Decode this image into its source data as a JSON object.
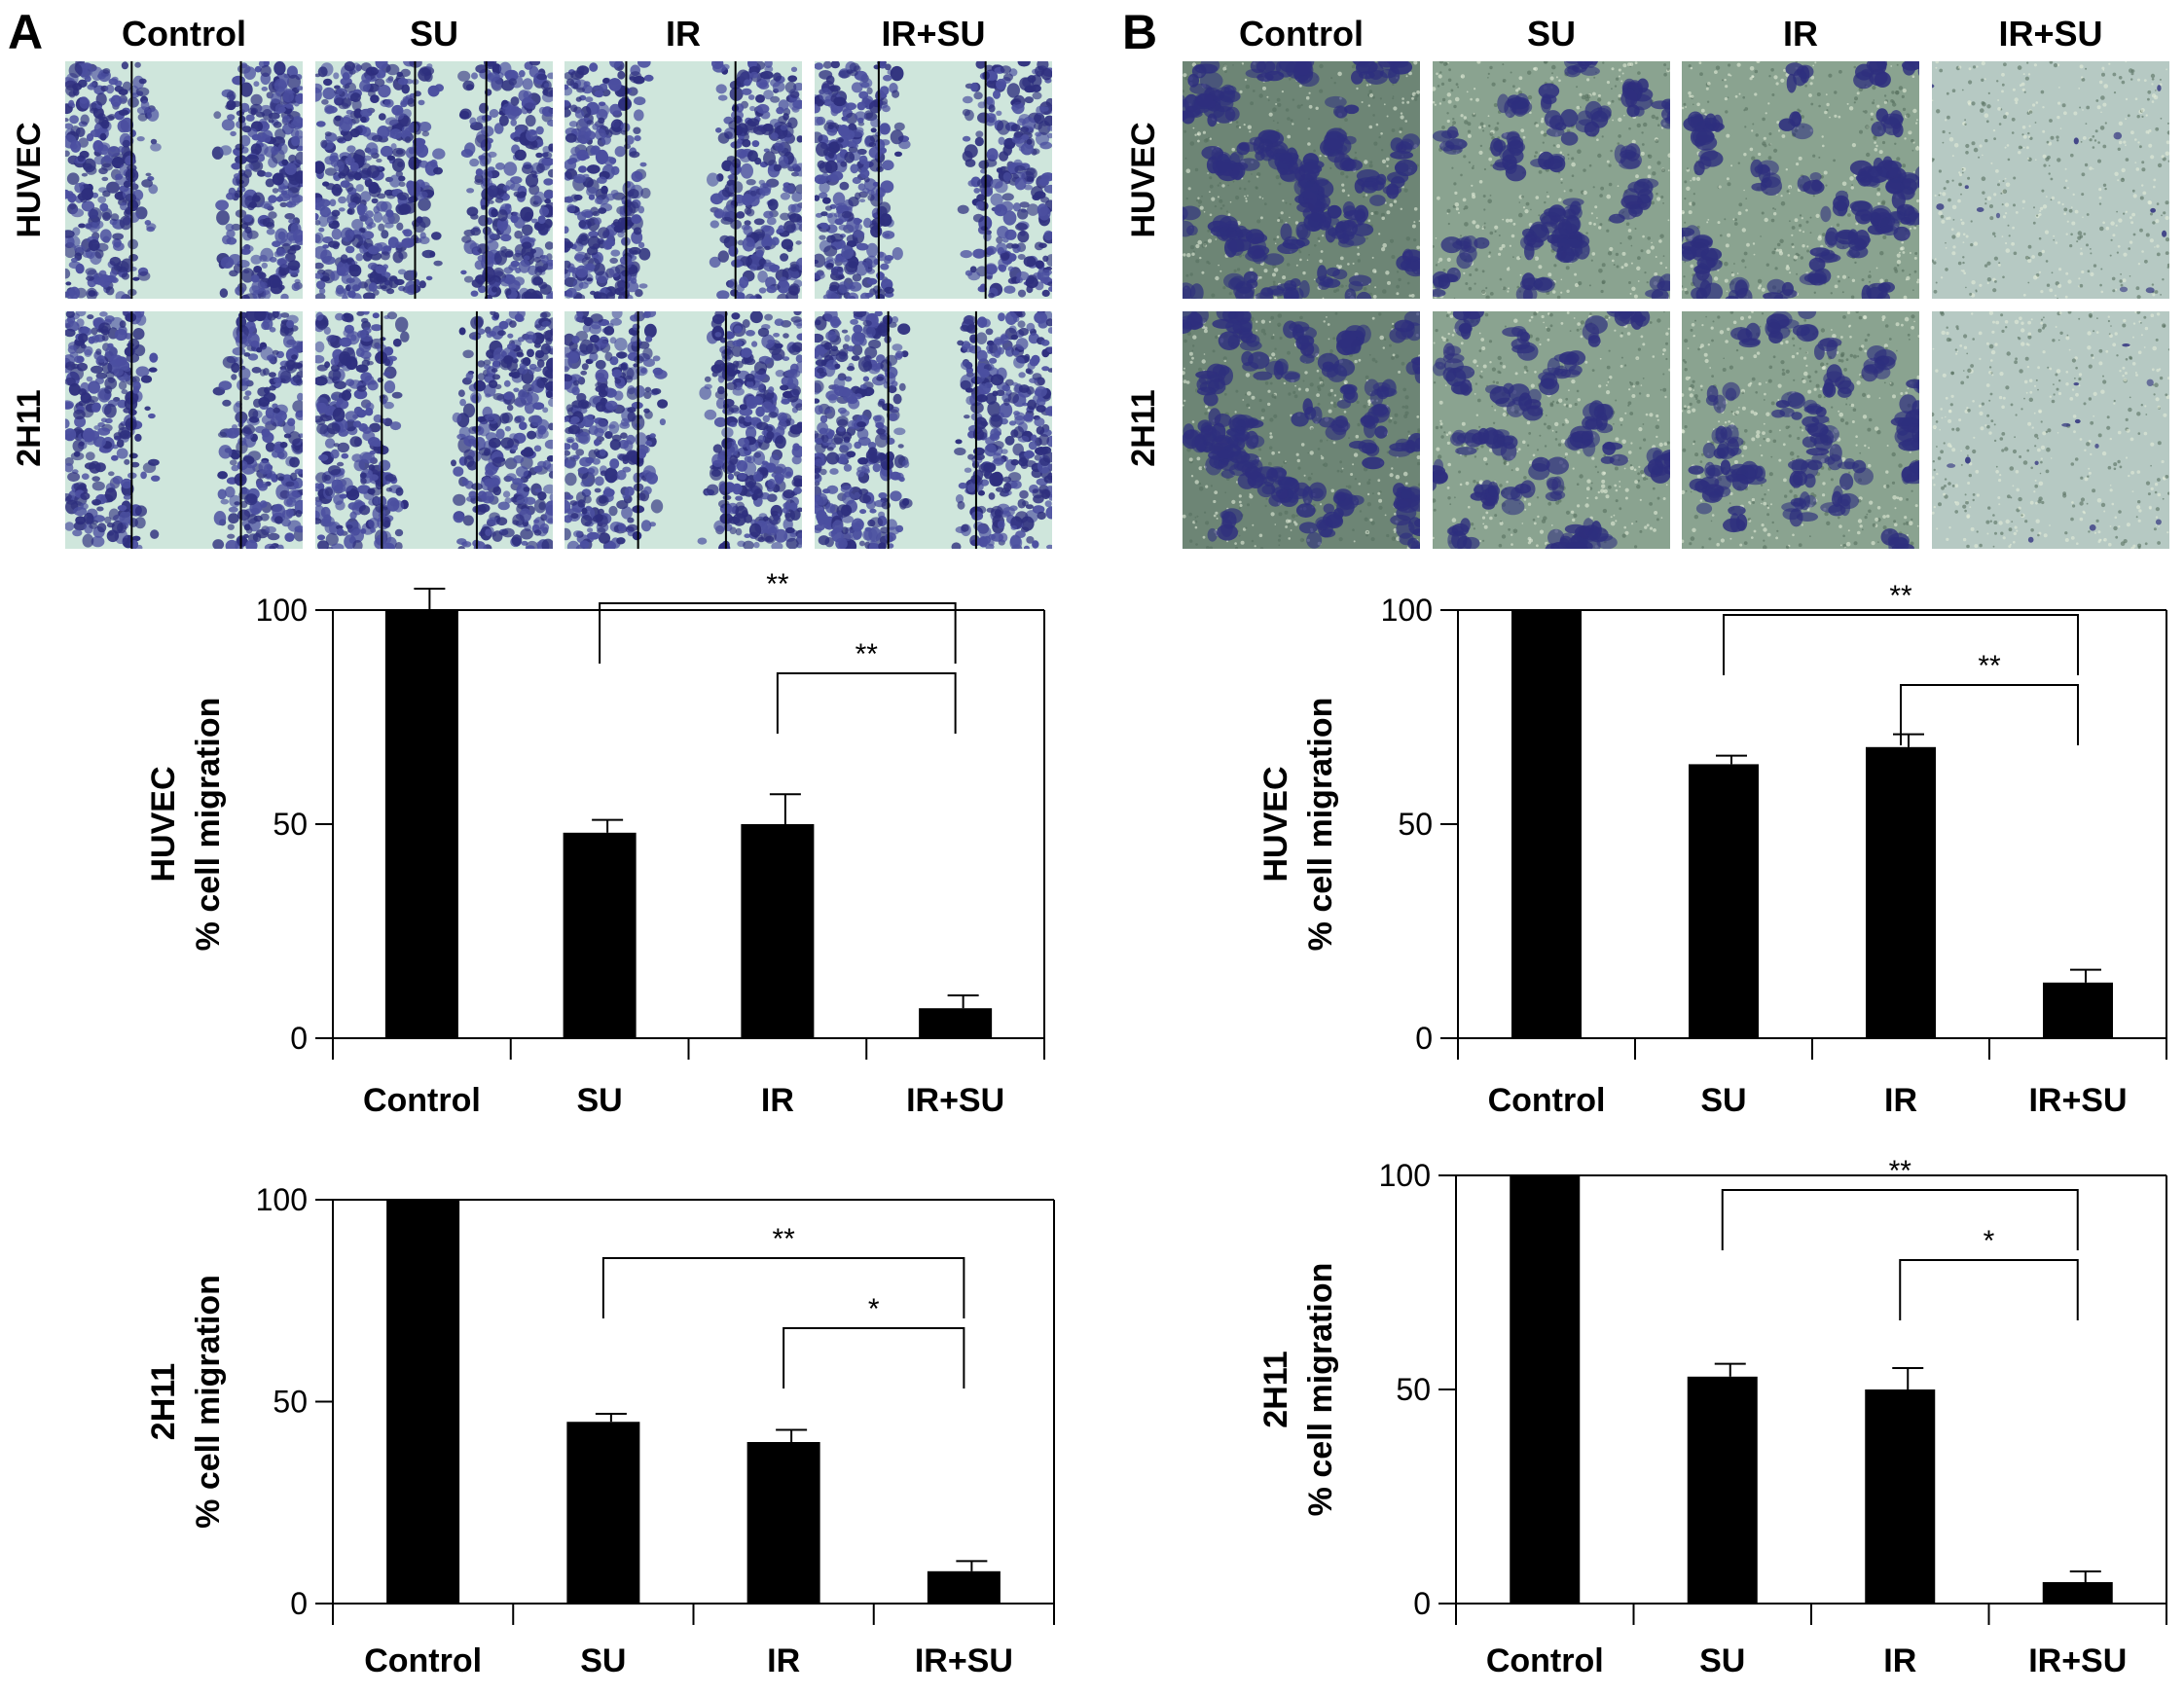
{
  "panels": [
    {
      "letter": "A",
      "treatments": [
        "Control",
        "SU",
        "IR",
        "IR+SU"
      ],
      "cell_lines": [
        "HUVEC",
        "2H11"
      ],
      "micro_style": "scratch-wound"
    },
    {
      "letter": "B",
      "treatments": [
        "Control",
        "SU",
        "IR",
        "IR+SU"
      ],
      "cell_lines": [
        "HUVEC",
        "2H11"
      ],
      "micro_style": "transwell"
    }
  ],
  "colors": {
    "bar": "#000000",
    "stain_dark": "#2e2f7e",
    "stain_mid": "#4b4fa0",
    "background_light": "#cfe6dc",
    "transwell_background": "#7f9a82"
  },
  "chart_data": [
    {
      "type": "bar",
      "panel": "A",
      "cell_line_label": "HUVEC",
      "ylabel": "% cell migration",
      "categories": [
        "Control",
        "SU",
        "IR",
        "IR+SU"
      ],
      "values": [
        100,
        48,
        50,
        7
      ],
      "errors": [
        5,
        3,
        7,
        3
      ],
      "ylim": [
        0,
        100
      ],
      "yticks": [
        0,
        50,
        100
      ],
      "comparisons": [
        {
          "from": 1,
          "to": 3,
          "label": "**"
        },
        {
          "from": 2,
          "to": 3,
          "label": "**"
        }
      ]
    },
    {
      "type": "bar",
      "panel": "A",
      "cell_line_label": "2H11",
      "ylabel": "% cell migration",
      "categories": [
        "Control",
        "SU",
        "IR",
        "IR+SU"
      ],
      "values": [
        100,
        45,
        40,
        8
      ],
      "errors": [
        0,
        2,
        3,
        2.5
      ],
      "ylim": [
        0,
        100
      ],
      "yticks": [
        0,
        50,
        100
      ],
      "comparisons": [
        {
          "from": 1,
          "to": 3,
          "label": "**"
        },
        {
          "from": 2,
          "to": 3,
          "label": "*"
        }
      ]
    },
    {
      "type": "bar",
      "panel": "B",
      "cell_line_label": "HUVEC",
      "ylabel": "% cell migration",
      "categories": [
        "Control",
        "SU",
        "IR",
        "IR+SU"
      ],
      "values": [
        100,
        64,
        68,
        13
      ],
      "errors": [
        0,
        2,
        3,
        3
      ],
      "ylim": [
        0,
        100
      ],
      "yticks": [
        0,
        50,
        100
      ],
      "comparisons": [
        {
          "from": 1,
          "to": 3,
          "label": "**"
        },
        {
          "from": 2,
          "to": 3,
          "label": "**"
        }
      ]
    },
    {
      "type": "bar",
      "panel": "B",
      "cell_line_label": "2H11",
      "ylabel": "% cell migration",
      "categories": [
        "Control",
        "SU",
        "IR",
        "IR+SU"
      ],
      "values": [
        100,
        53,
        50,
        5
      ],
      "errors": [
        0,
        3,
        5,
        2.5
      ],
      "ylim": [
        0,
        100
      ],
      "yticks": [
        0,
        50,
        100
      ],
      "comparisons": [
        {
          "from": 1,
          "to": 3,
          "label": "**"
        },
        {
          "from": 2,
          "to": 3,
          "label": "*"
        }
      ]
    }
  ]
}
